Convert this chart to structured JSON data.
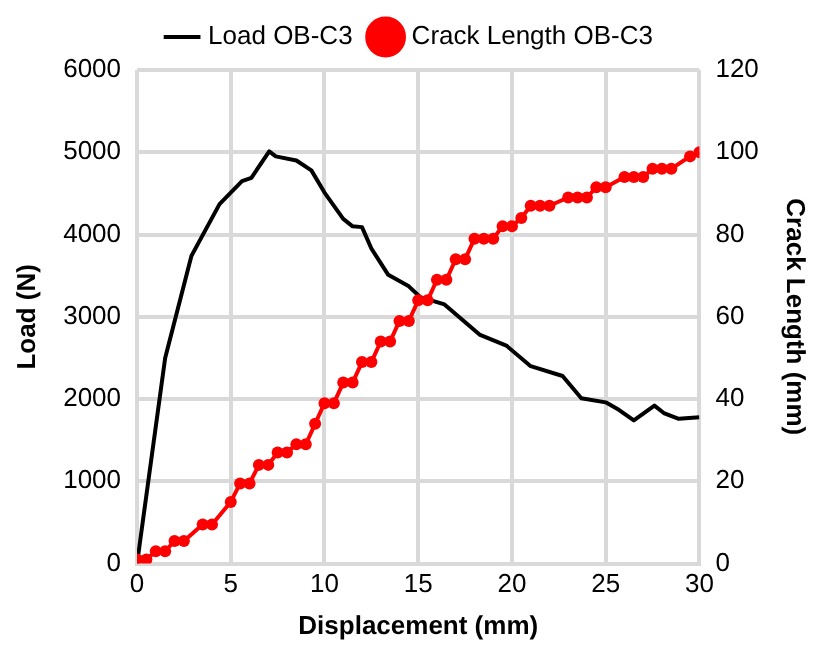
{
  "chart_data": {
    "type": "line",
    "xlabel": "Displacement (mm)",
    "ylabel": "Load (N)",
    "y2label": "Crack Length (mm)",
    "xlim": [
      0,
      30
    ],
    "xticks": [
      0,
      5,
      10,
      15,
      20,
      25,
      30
    ],
    "ylim": [
      0,
      6000
    ],
    "yticks": [
      0,
      1000,
      2000,
      3000,
      4000,
      5000,
      6000
    ],
    "y2lim": [
      0,
      120
    ],
    "y2ticks": [
      0,
      20,
      40,
      60,
      80,
      100,
      120
    ],
    "grid": true,
    "legend": "top",
    "series": [
      {
        "name": "Load OB-C3",
        "color": "#000000",
        "marker": "none",
        "x": [
          0,
          1.5,
          2.9,
          4.4,
          5.6,
          6.1,
          7.05,
          7.4,
          8.5,
          9.3,
          10,
          11,
          11.5,
          12,
          12.5,
          13.4,
          14.5,
          15.1,
          16.4,
          18.3,
          19.7,
          21,
          22.7,
          23.7,
          25,
          25.7,
          26.5,
          27.6,
          28.1,
          28.9,
          30
        ],
        "values": [
          0,
          2500,
          3740,
          4370,
          4650,
          4690,
          5010,
          4950,
          4900,
          4780,
          4510,
          4190,
          4100,
          4090,
          3830,
          3510,
          3370,
          3240,
          3150,
          2780,
          2650,
          2400,
          2280,
          2010,
          1960,
          1870,
          1740,
          1920,
          1830,
          1760,
          1780
        ]
      },
      {
        "name": "Crack Length OB-C3",
        "color": "#ff0000",
        "marker": "circle",
        "axis": "y2",
        "x": [
          0,
          0.5,
          1,
          1.5,
          2,
          2.5,
          3.5,
          4,
          5,
          5.5,
          6,
          6.5,
          7,
          7.5,
          8,
          8.5,
          9,
          9.5,
          10,
          10.5,
          11,
          11.5,
          12,
          12.5,
          13,
          13.5,
          14,
          14.5,
          15,
          15.5,
          16,
          16.5,
          17,
          17.5,
          18,
          18.5,
          19,
          19.5,
          20,
          20.5,
          21,
          21.5,
          22,
          23,
          23.5,
          24,
          24.5,
          25,
          26,
          26.5,
          27,
          27.5,
          28,
          28.5,
          29.5,
          30
        ],
        "values": [
          1,
          1,
          3,
          3,
          5.5,
          5.5,
          9.5,
          9.5,
          15,
          19.5,
          19.5,
          24,
          24,
          27,
          27,
          29,
          29,
          34,
          39,
          39,
          44,
          44,
          49,
          49,
          54,
          54,
          59,
          59,
          64,
          64,
          69,
          69,
          74,
          74,
          79,
          79,
          79,
          82,
          82,
          84,
          87,
          87,
          87,
          89,
          89,
          89,
          91.5,
          91.5,
          94,
          94,
          94,
          96,
          96,
          96,
          99,
          100
        ]
      }
    ]
  }
}
